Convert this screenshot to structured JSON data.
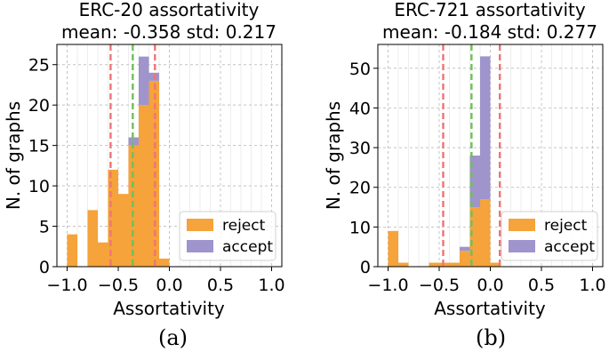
{
  "chart_data": [
    {
      "type": "bar",
      "stacked": true,
      "title": "ERC-20 assortativity",
      "subtitle": "mean: -0.358 std: 0.217",
      "xlabel": "Assortativity",
      "ylabel": "N. of graphs",
      "xlim": [
        -1.1,
        1.1
      ],
      "ylim": [
        0,
        27.5
      ],
      "xticks": [
        -1.0,
        -0.5,
        0.0,
        0.5,
        1.0
      ],
      "xtick_labels": [
        "−1.0",
        "−0.5",
        "0.0",
        "0.5",
        "1.0"
      ],
      "yticks": [
        0,
        5,
        10,
        15,
        20,
        25
      ],
      "ytick_labels": [
        "0",
        "5",
        "10",
        "15",
        "20",
        "25"
      ],
      "grid": true,
      "legend": "lower-right",
      "bin_edges": [
        -1.0,
        -0.9,
        -0.8,
        -0.7,
        -0.6,
        -0.5,
        -0.4,
        -0.3,
        -0.2,
        -0.1,
        0.0
      ],
      "series": [
        {
          "name": "reject",
          "color": "#f5a33a",
          "values": [
            4,
            0,
            7,
            3,
            12,
            9,
            15,
            20,
            23,
            1
          ]
        },
        {
          "name": "accept",
          "color": "#9f94cc",
          "values": [
            0,
            0,
            0,
            0,
            0,
            0,
            1,
            6,
            1,
            0
          ]
        }
      ],
      "vlines": [
        {
          "name": "mean - std",
          "x": -0.575,
          "color": "#f07474"
        },
        {
          "name": "mean",
          "x": -0.358,
          "color": "#6fbf5a"
        },
        {
          "name": "mean + std",
          "x": -0.141,
          "color": "#f07474"
        }
      ]
    },
    {
      "type": "bar",
      "stacked": true,
      "title": "ERC-721 assortativity",
      "subtitle": "mean: -0.184 std: 0.277",
      "xlabel": "Assortativity",
      "ylabel": "N. of graphs",
      "xlim": [
        -1.1,
        1.1
      ],
      "ylim": [
        0,
        56
      ],
      "xticks": [
        -1.0,
        -0.5,
        0.0,
        0.5,
        1.0
      ],
      "xtick_labels": [
        "−1.0",
        "−0.5",
        "0.0",
        "0.5",
        "1.0"
      ],
      "yticks": [
        0,
        10,
        20,
        30,
        40,
        50
      ],
      "ytick_labels": [
        "0",
        "10",
        "20",
        "30",
        "40",
        "50"
      ],
      "grid": true,
      "legend": "lower-right",
      "bin_edges": [
        -1.0,
        -0.9,
        -0.8,
        -0.7,
        -0.6,
        -0.5,
        -0.4,
        -0.3,
        -0.2,
        -0.1,
        0.0,
        0.1
      ],
      "series": [
        {
          "name": "reject",
          "color": "#f5a33a",
          "values": [
            9,
            1,
            0,
            0,
            1,
            1,
            1,
            4,
            15,
            17,
            1
          ]
        },
        {
          "name": "accept",
          "color": "#9f94cc",
          "values": [
            0,
            0,
            0,
            0,
            0,
            0,
            0,
            1,
            13,
            36,
            0
          ]
        }
      ],
      "vlines": [
        {
          "name": "mean - std",
          "x": -0.461,
          "color": "#f07474"
        },
        {
          "name": "mean",
          "x": -0.184,
          "color": "#6fbf5a"
        },
        {
          "name": "mean + std",
          "x": 0.093,
          "color": "#f07474"
        }
      ]
    }
  ],
  "captions": {
    "a": "(a)",
    "b": "(b)"
  }
}
